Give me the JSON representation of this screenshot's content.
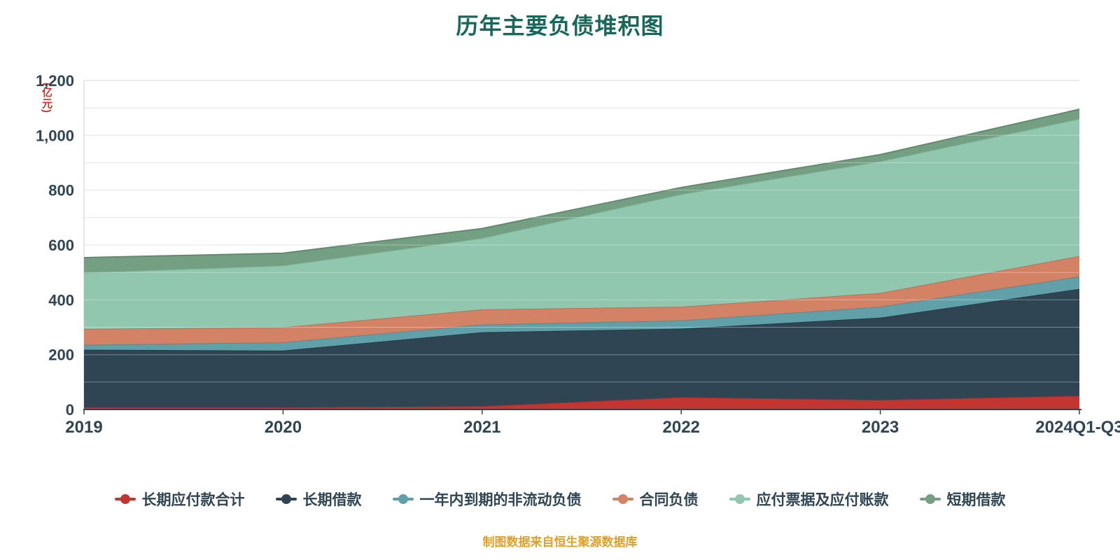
{
  "title": {
    "text": "历年主要负债堆积图",
    "color": "#17685a"
  },
  "y_axis": {
    "unit": "(亿元)",
    "unit_color": "#d0302a",
    "tick_labels": [
      "0",
      "200",
      "400",
      "600",
      "800",
      "1,000",
      "1,200"
    ],
    "tick_values": [
      0,
      200,
      400,
      600,
      800,
      1000,
      1200
    ],
    "minor_step": 100,
    "max": 1200,
    "label_color": "#2f4554"
  },
  "footer": {
    "text": "制图数据来自恒生聚源数据库",
    "color": "#dfa02b"
  },
  "chart_data": {
    "type": "area",
    "stacked": true,
    "grid": true,
    "legend_position": "bottom",
    "title": "历年主要负债堆积图",
    "ylabel": "(亿元)",
    "ylim": [
      0,
      1200
    ],
    "categories": [
      "2019",
      "2020",
      "2021",
      "2022",
      "2023",
      "2024Q1-Q3"
    ],
    "series": [
      {
        "name": "长期应付款合计",
        "color": "#c23531",
        "line": "#a82c28",
        "values": [
          8,
          8,
          12,
          45,
          35,
          50
        ]
      },
      {
        "name": "长期借款",
        "color": "#2f4554",
        "line": "#263a47",
        "values": [
          210,
          207,
          270,
          250,
          300,
          390
        ]
      },
      {
        "name": "一年内到期的非流动负债",
        "color": "#61a0a8",
        "line": "#528c93",
        "values": [
          18,
          30,
          28,
          30,
          40,
          45
        ]
      },
      {
        "name": "合同负债",
        "color": "#d48265",
        "line": "#bd6f54",
        "values": [
          58,
          55,
          55,
          50,
          50,
          75
        ]
      },
      {
        "name": "应付票据及应付账款",
        "color": "#91c7ae",
        "line": "#7bb59a",
        "values": [
          205,
          225,
          260,
          410,
          480,
          500
        ]
      },
      {
        "name": "短期借款",
        "color": "#749f83",
        "line": "#628a70",
        "values": [
          55,
          45,
          35,
          25,
          25,
          35
        ]
      }
    ]
  }
}
